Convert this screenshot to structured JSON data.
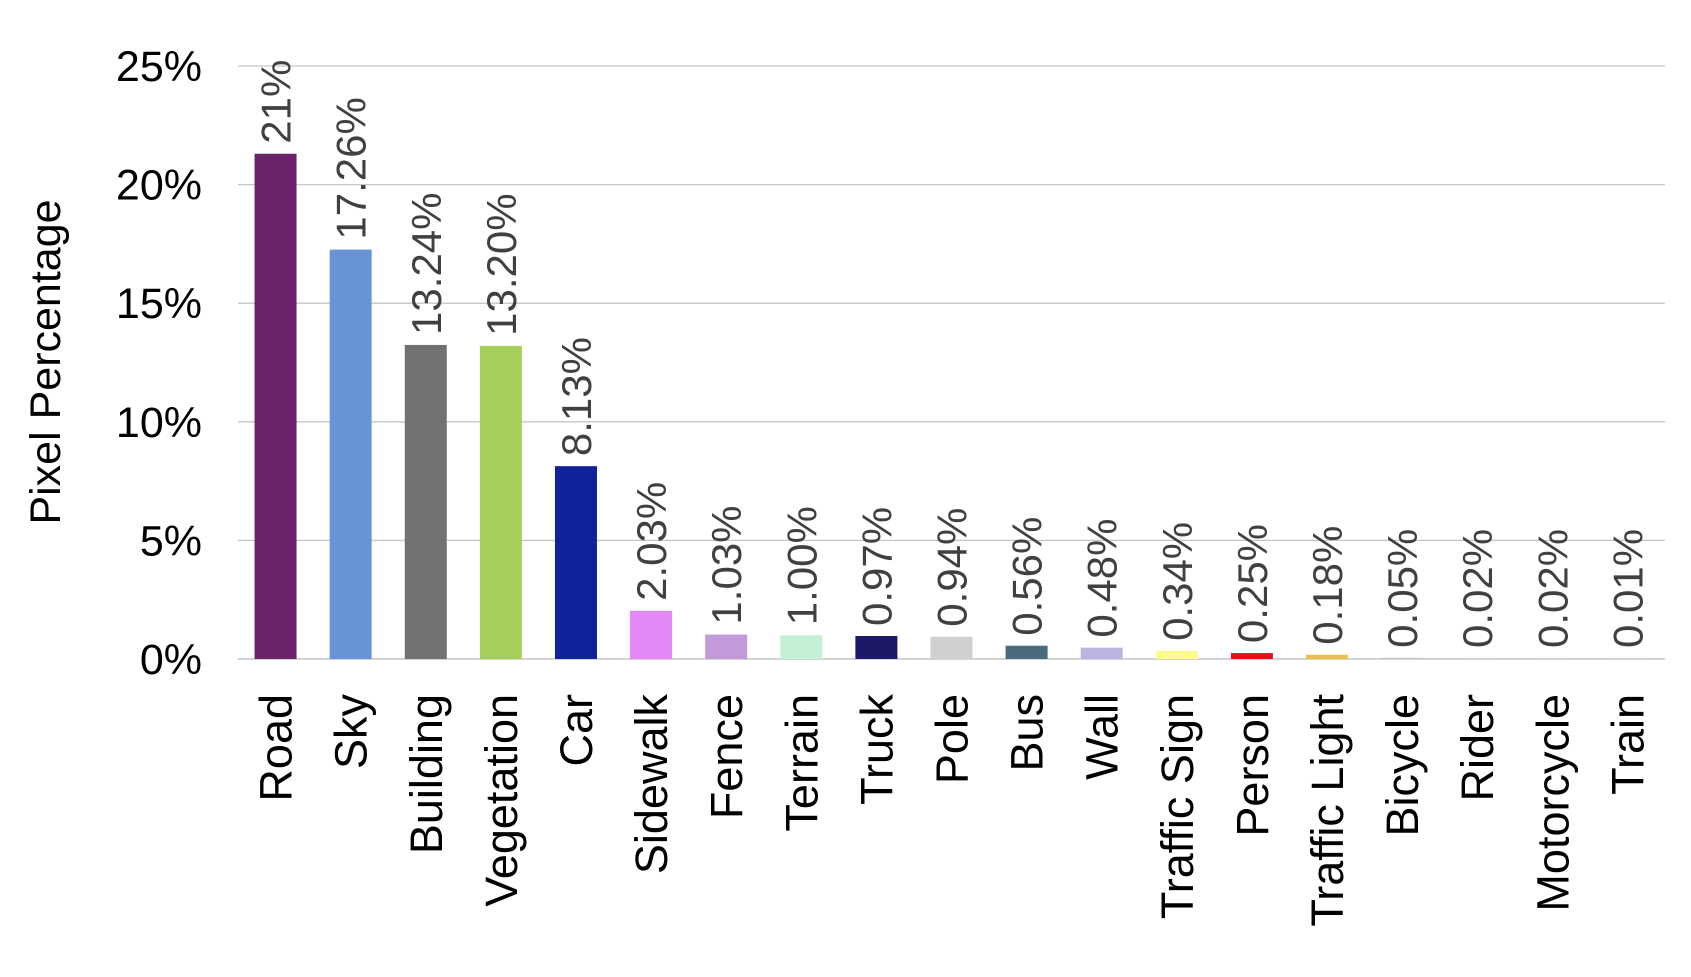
{
  "chart_data": {
    "type": "bar",
    "title": "",
    "xlabel": "",
    "ylabel": "Pixel Percentage",
    "ylim": [
      0,
      25
    ],
    "y_ticks": [
      "0%",
      "5%",
      "10%",
      "15%",
      "20%",
      "25%"
    ],
    "grid": true,
    "legend": "none",
    "categories": [
      "Road",
      "Sky",
      "Building",
      "Vegetation",
      "Car",
      "Sidewalk",
      "Fence",
      "Terrain",
      "Truck",
      "Pole",
      "Bus",
      "Wall",
      "Traffic Sign",
      "Person",
      "Traffic Light",
      "Bicycle",
      "Rider",
      "Motorcycle",
      "Train"
    ],
    "values": [
      21.3,
      17.26,
      13.24,
      13.2,
      8.13,
      2.03,
      1.03,
      1.0,
      0.97,
      0.94,
      0.56,
      0.48,
      0.34,
      0.25,
      0.18,
      0.05,
      0.02,
      0.02,
      0.01
    ],
    "data_labels": [
      "21%",
      "17.26%",
      "13.24%",
      "13.20%",
      "8.13%",
      "2.03%",
      "1.03%",
      "1.00%",
      "0.97%",
      "0.94%",
      "0.56%",
      "0.48%",
      "0.34%",
      "0.25%",
      "0.18%",
      "0.05%",
      "0.02%",
      "0.02%",
      "0.01%"
    ],
    "colors": [
      "#6a2369",
      "#6893d6",
      "#727272",
      "#a6cf5a",
      "#0e229b",
      "#e287f5",
      "#c39ad9",
      "#c4f1d3",
      "#1d1969",
      "#d0d0d0",
      "#4a6b7d",
      "#bcb3e0",
      "#fdfb8c",
      "#e11318",
      "#ebc14b",
      "#c4c4c4",
      "#d6d6d6",
      "#d6d6d6",
      "#d6d6d6"
    ]
  }
}
